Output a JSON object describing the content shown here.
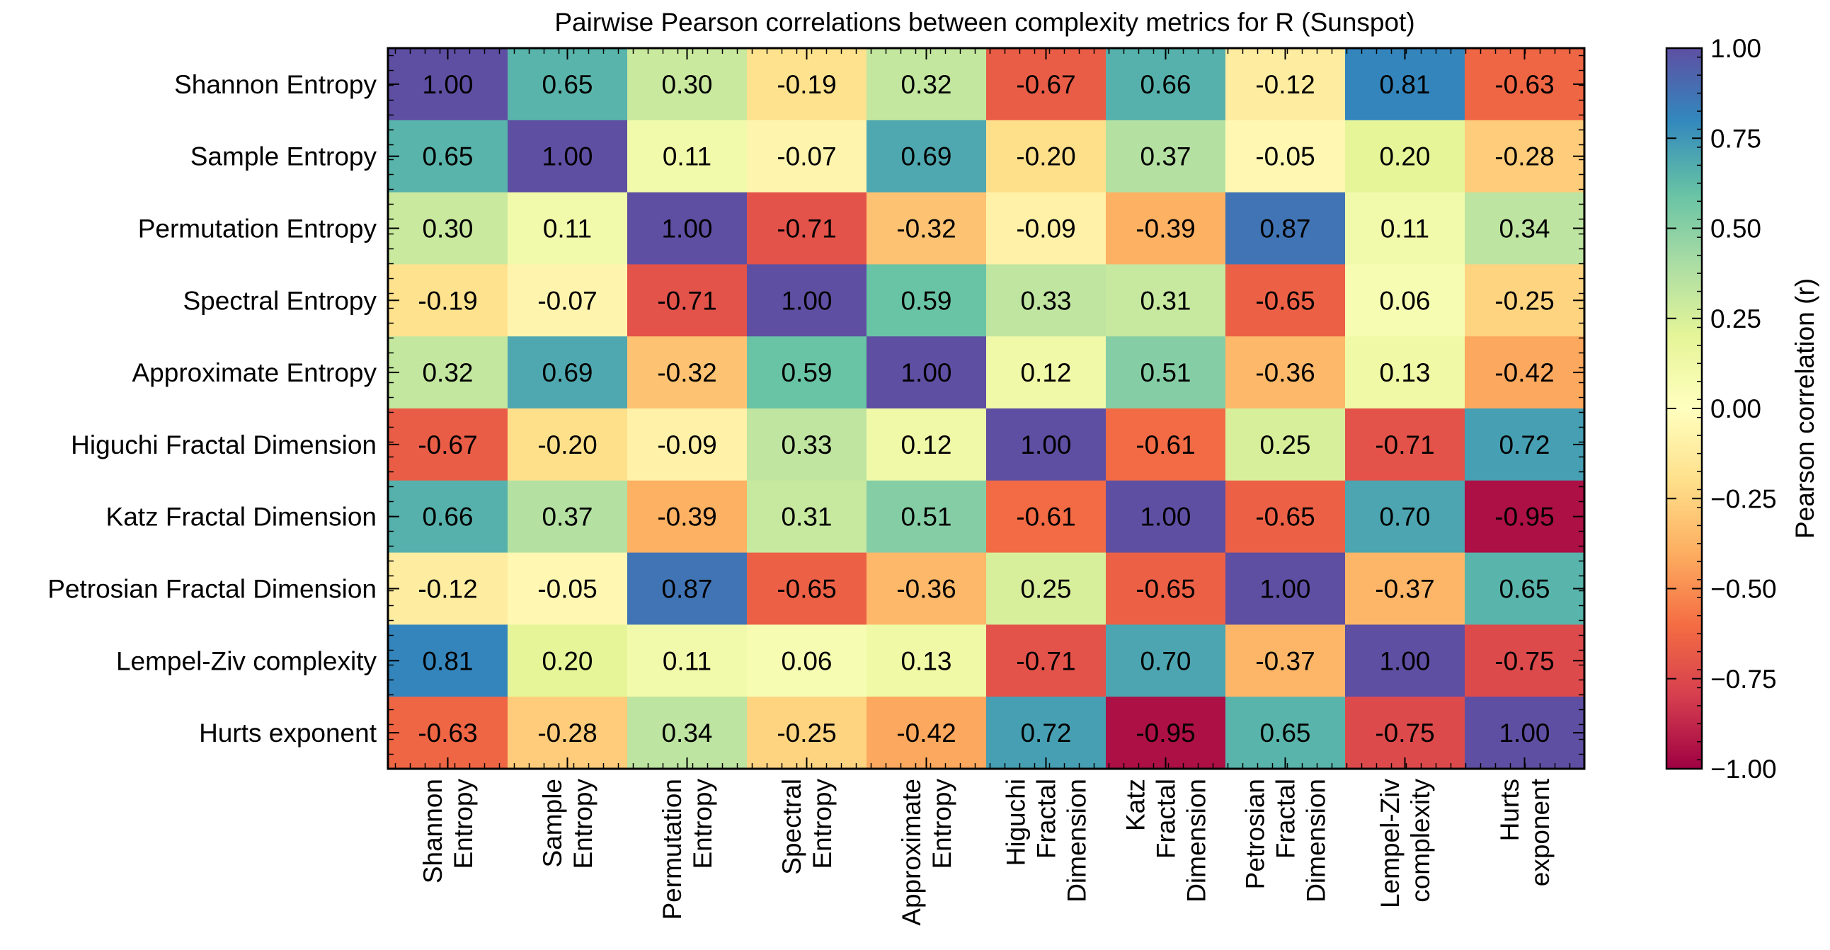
{
  "chart_data": {
    "type": "heatmap",
    "title": "Pairwise Pearson correlations between complexity metrics for R (Sunspot)",
    "row_labels": [
      "Shannon Entropy",
      "Sample Entropy",
      "Permutation Entropy",
      "Spectral Entropy",
      "Approximate Entropy",
      "Higuchi Fractal Dimension",
      "Katz Fractal Dimension",
      "Petrosian Fractal Dimension",
      "Lempel-Ziv complexity",
      "Hurts exponent"
    ],
    "col_labels": [
      [
        "Shannon",
        "Entropy"
      ],
      [
        "Sample",
        "Entropy"
      ],
      [
        "Permutation",
        "Entropy"
      ],
      [
        "Spectral",
        "Entropy"
      ],
      [
        "Approximate",
        "Entropy"
      ],
      [
        "Higuchi",
        "Fractal",
        "Dimension"
      ],
      [
        "Katz",
        "Fractal",
        "Dimension"
      ],
      [
        "Petrosian",
        "Fractal",
        "Dimension"
      ],
      [
        "Lempel-Ziv",
        "complexity"
      ],
      [
        "Hurts",
        "exponent"
      ]
    ],
    "values": [
      [
        1.0,
        0.65,
        0.3,
        -0.19,
        0.32,
        -0.67,
        0.66,
        -0.12,
        0.81,
        -0.63
      ],
      [
        0.65,
        1.0,
        0.11,
        -0.07,
        0.69,
        -0.2,
        0.37,
        -0.05,
        0.2,
        -0.28
      ],
      [
        0.3,
        0.11,
        1.0,
        -0.71,
        -0.32,
        -0.09,
        -0.39,
        0.87,
        0.11,
        0.34
      ],
      [
        -0.19,
        -0.07,
        -0.71,
        1.0,
        0.59,
        0.33,
        0.31,
        -0.65,
        0.06,
        -0.25
      ],
      [
        0.32,
        0.69,
        -0.32,
        0.59,
        1.0,
        0.12,
        0.51,
        -0.36,
        0.13,
        -0.42
      ],
      [
        -0.67,
        -0.2,
        -0.09,
        0.33,
        0.12,
        1.0,
        -0.61,
        0.25,
        -0.71,
        0.72
      ],
      [
        0.66,
        0.37,
        -0.39,
        0.31,
        0.51,
        -0.61,
        1.0,
        -0.65,
        0.7,
        -0.95
      ],
      [
        -0.12,
        -0.05,
        0.87,
        -0.65,
        -0.36,
        0.25,
        -0.65,
        1.0,
        -0.37,
        0.65
      ],
      [
        0.81,
        0.2,
        0.11,
        0.06,
        0.13,
        -0.71,
        0.7,
        -0.37,
        1.0,
        -0.75
      ],
      [
        -0.63,
        -0.28,
        0.34,
        -0.25,
        -0.42,
        0.72,
        -0.95,
        0.65,
        -0.75,
        1.0
      ]
    ],
    "colorbar": {
      "label": "Pearson correlation (r)",
      "range": [
        -1.0,
        1.0
      ],
      "ticks": [
        "1.00",
        "0.75",
        "0.50",
        "0.25",
        "0.00",
        "−0.25",
        "−0.50",
        "−0.75",
        "−1.00"
      ],
      "tick_values": [
        1.0,
        0.75,
        0.5,
        0.25,
        0.0,
        -0.25,
        -0.5,
        -0.75,
        -1.0
      ]
    },
    "colormap": "Spectral",
    "colormap_stops": [
      "#9e0142",
      "#d53e4f",
      "#f46d43",
      "#fdae61",
      "#fee08b",
      "#ffffbf",
      "#e6f598",
      "#abdda4",
      "#66c2a5",
      "#3288bd",
      "#5e4fa2"
    ],
    "value_format": "2 decimals"
  }
}
